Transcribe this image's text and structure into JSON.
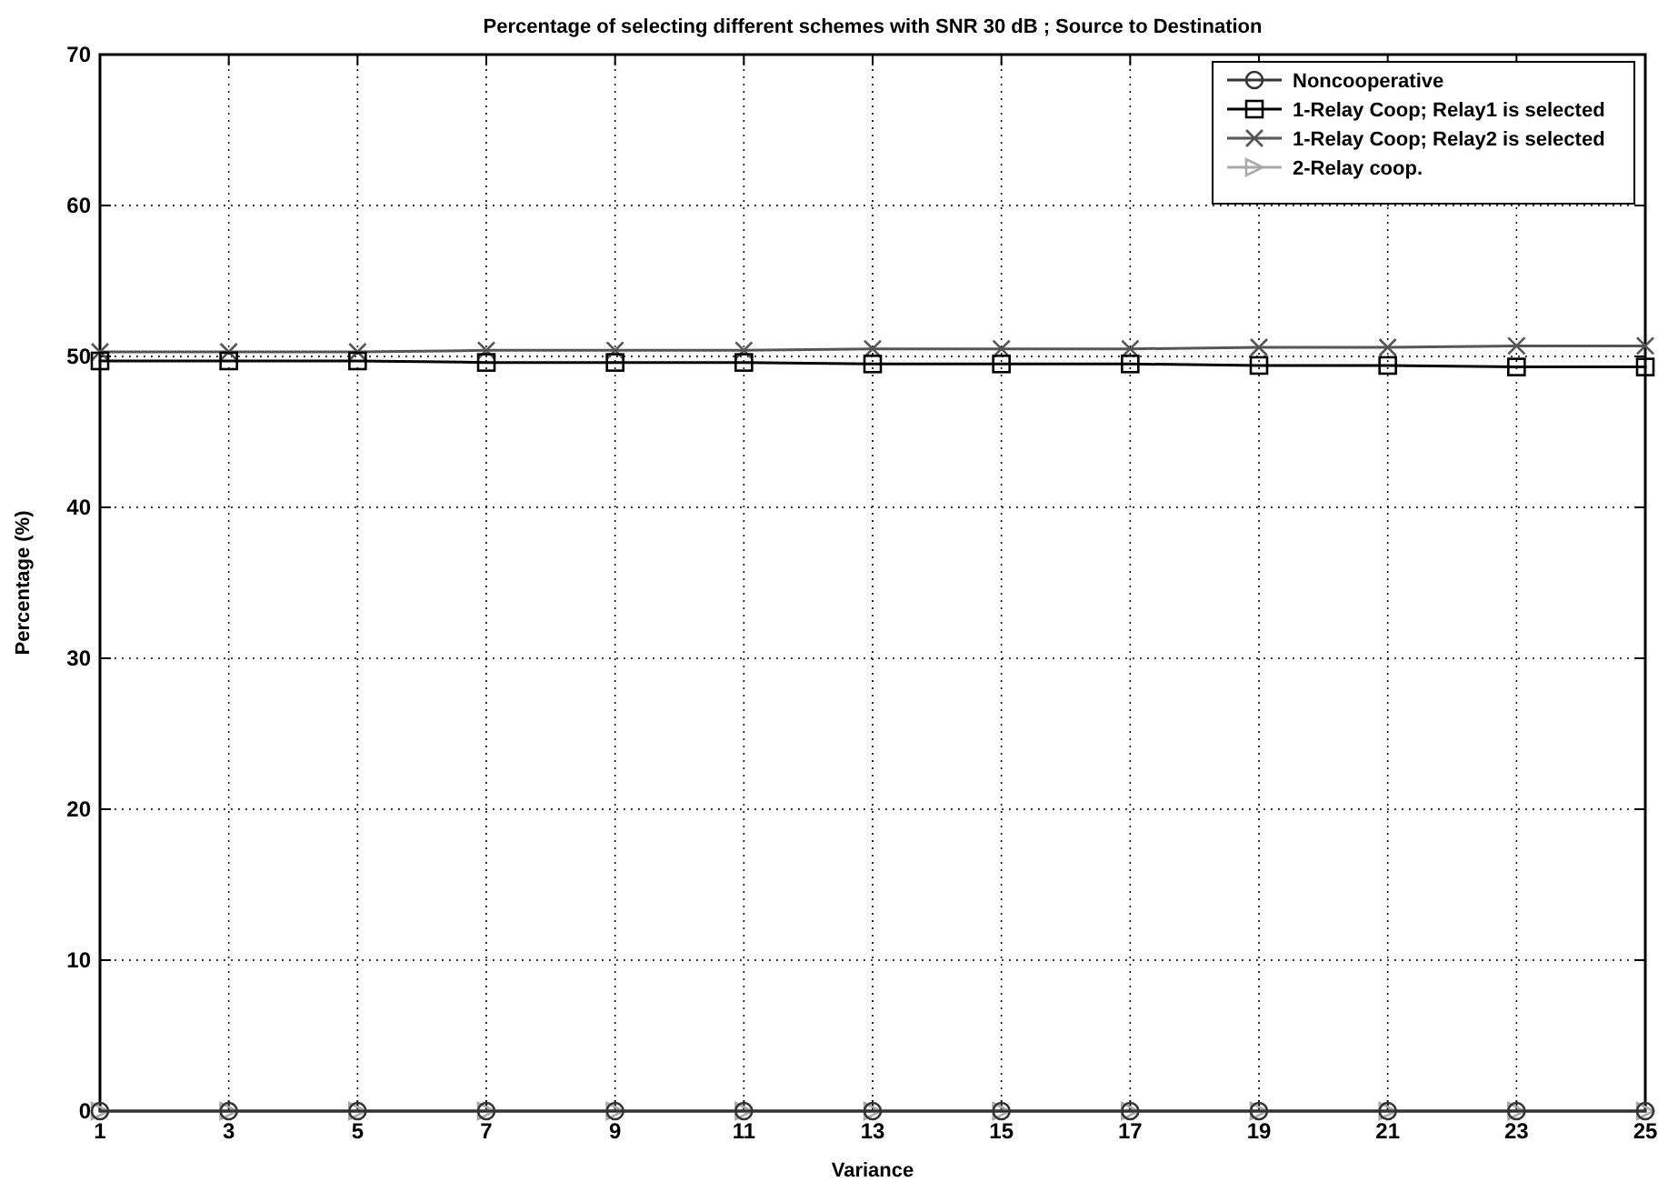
{
  "chart_data": {
    "type": "line",
    "title": "Percentage of selecting different schemes with SNR 30 dB ; Source to Destination",
    "xlabel": "Variance",
    "ylabel": "Percentage (%)",
    "x": [
      1,
      3,
      5,
      7,
      9,
      11,
      13,
      15,
      17,
      19,
      21,
      23,
      25
    ],
    "xlim": [
      1,
      25
    ],
    "xticks": [
      1,
      3,
      5,
      7,
      9,
      11,
      13,
      15,
      17,
      19,
      21,
      23,
      25
    ],
    "ylim": [
      0,
      70
    ],
    "yticks": [
      0,
      10,
      20,
      30,
      40,
      50,
      60,
      70
    ],
    "grid": true,
    "legend": "top right",
    "line_style": "solid",
    "series": [
      {
        "name": "Noncooperative",
        "color": "#333333",
        "marker": "circle",
        "values": [
          0,
          0,
          0,
          0,
          0,
          0,
          0,
          0,
          0,
          0,
          0,
          0,
          0
        ]
      },
      {
        "name": "1-Relay Coop; Relay1 is selected",
        "color": "#000000",
        "marker": "square",
        "values": [
          49.7,
          49.7,
          49.7,
          49.6,
          49.6,
          49.6,
          49.5,
          49.5,
          49.5,
          49.4,
          49.4,
          49.3,
          49.3
        ]
      },
      {
        "name": "1-Relay Coop; Relay2 is selected",
        "color": "#555555",
        "marker": "cross",
        "values": [
          50.3,
          50.3,
          50.3,
          50.4,
          50.4,
          50.4,
          50.5,
          50.5,
          50.5,
          50.6,
          50.6,
          50.7,
          50.7
        ]
      },
      {
        "name": "2-Relay coop.",
        "color": "#aaaaaa",
        "marker": "triangle",
        "values": [
          0,
          0,
          0,
          0,
          0,
          0,
          0,
          0,
          0,
          0,
          0,
          0,
          0
        ]
      }
    ]
  }
}
